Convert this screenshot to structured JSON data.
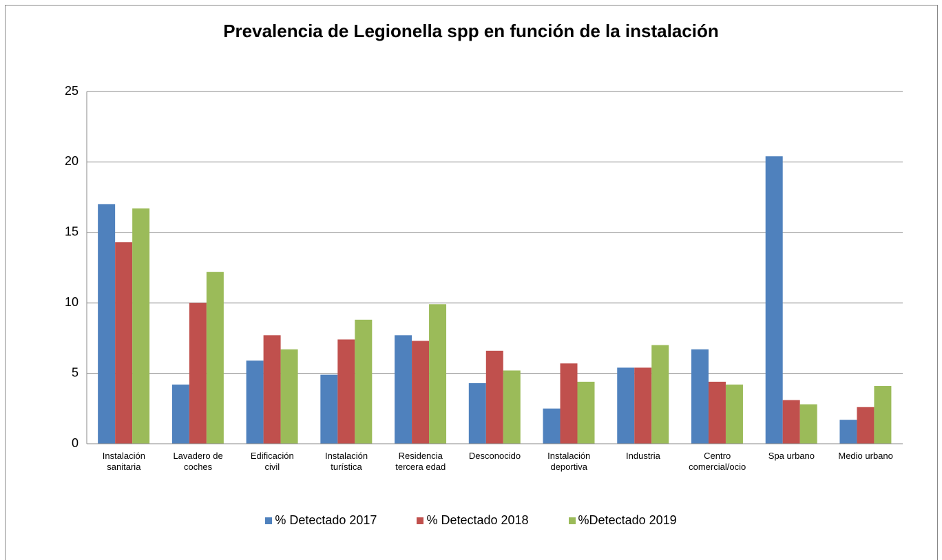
{
  "chart_data": {
    "type": "bar",
    "title": "Prevalencia de Legionella spp en función de la instalación",
    "categories": [
      "Instalación\nsanitaria",
      "Lavadero de\ncoches",
      "Edificación\ncivil",
      "Instalación\nturística",
      "Residencia\ntercera edad",
      "Desconocido",
      "Instalación\ndeportiva",
      "Industria",
      "Centro\ncomercial/ocio",
      "Spa urbano",
      "Medio urbano"
    ],
    "series": [
      {
        "name": "% Detectado 2017",
        "color": "#4f81bd",
        "values": [
          17,
          4.2,
          5.9,
          4.9,
          7.7,
          4.3,
          2.5,
          5.4,
          6.7,
          20.4,
          1.7
        ]
      },
      {
        "name": "% Detectado 2018",
        "color": "#c0504d",
        "values": [
          14.3,
          10,
          7.7,
          7.4,
          7.3,
          6.6,
          5.7,
          5.4,
          4.4,
          3.1,
          2.6
        ]
      },
      {
        "name": "%Detectado 2019",
        "color": "#9bbb59",
        "values": [
          16.7,
          12.2,
          6.7,
          8.8,
          9.9,
          5.2,
          4.4,
          7.0,
          4.2,
          2.8,
          4.1
        ]
      }
    ],
    "ylim": [
      0,
      25
    ],
    "yticks": [
      0,
      5,
      10,
      15,
      20,
      25
    ],
    "grid": true,
    "legend": "bottom"
  }
}
